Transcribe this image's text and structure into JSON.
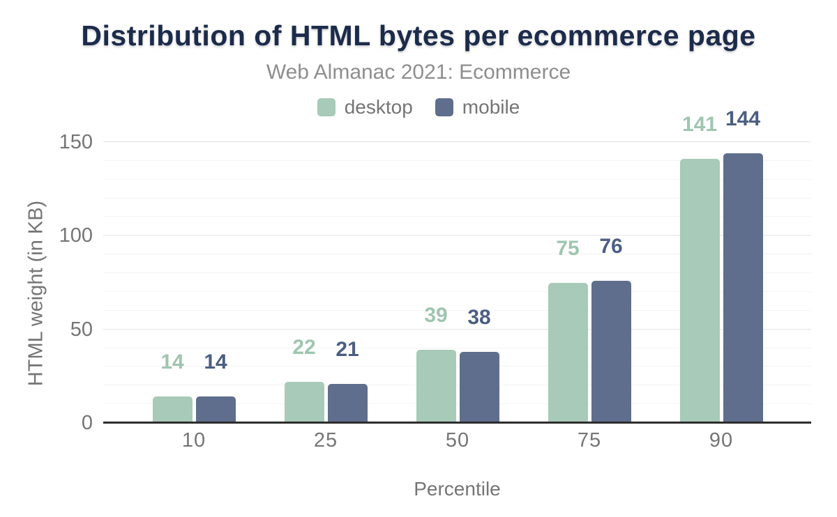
{
  "title": "Distribution of HTML bytes per ecommerce page",
  "subtitle": "Web Almanac 2021: Ecommerce",
  "legend": {
    "items": [
      {
        "label": "desktop",
        "color": "#a8cab8"
      },
      {
        "label": "mobile",
        "color": "#5f6e8c"
      }
    ]
  },
  "axes": {
    "xlabel": "Percentile",
    "ylabel": "HTML weight (in KB)"
  },
  "chart_data": {
    "type": "bar",
    "title": "Distribution of HTML bytes per ecommerce page",
    "subtitle": "Web Almanac 2021: Ecommerce",
    "categories": [
      "10",
      "25",
      "50",
      "75",
      "90"
    ],
    "series": [
      {
        "name": "desktop",
        "color": "#a8cab8",
        "label_color": "#9fc5b0",
        "values": [
          14,
          22,
          39,
          75,
          141
        ]
      },
      {
        "name": "mobile",
        "color": "#5f6e8c",
        "label_color": "#4c5f82",
        "values": [
          14,
          21,
          38,
          76,
          144
        ]
      }
    ],
    "xlabel": "Percentile",
    "ylabel": "HTML weight (in KB)",
    "ylim": [
      0,
      150
    ],
    "yticks": [
      0,
      50,
      100,
      150
    ],
    "minor_grid_step": 10,
    "grid": true,
    "legend_position": "top",
    "bar_labels_shown": true
  },
  "colors": {
    "title_text": "#1c2b4a",
    "subtitle_text": "#8e8e8e",
    "axis_text": "#757575",
    "baseline": "#2d2d2d",
    "grid_major": "#e4e4e4",
    "grid_minor": "#f4f4f4",
    "background": "#ffffff"
  }
}
